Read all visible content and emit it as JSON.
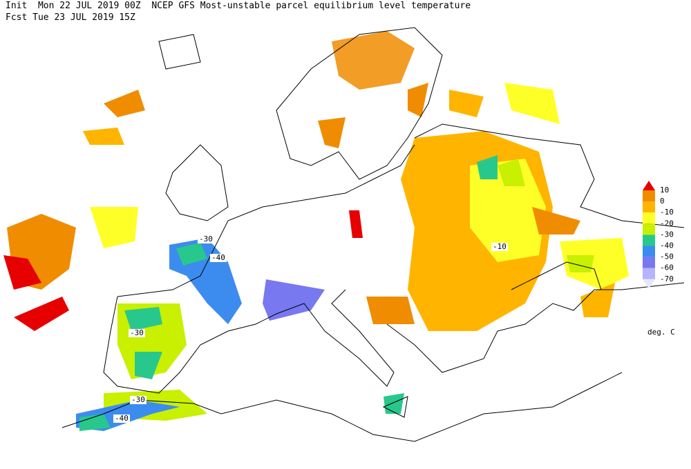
{
  "header": {
    "line1": "Init  Mon 22 JUL 2019 00Z  NCEP GFS Most-unstable parcel equilibrium level temperature",
    "line2": "Fcst Tue 23 JUL 2019 15Z"
  },
  "legend": {
    "levels": [
      10,
      0,
      -10,
      -20,
      -30,
      -40,
      -50,
      -60,
      -70
    ],
    "colors": [
      "#e60000",
      "#f08c00",
      "#ffb400",
      "#ffff28",
      "#c8f000",
      "#28c88c",
      "#3c8cf0",
      "#7878f0",
      "#b4b4ff",
      "#e6e6ff"
    ],
    "unit": "deg. C"
  },
  "map": {
    "contour_labels": [
      -30,
      -40,
      -10,
      -30,
      -30,
      -40
    ]
  }
}
